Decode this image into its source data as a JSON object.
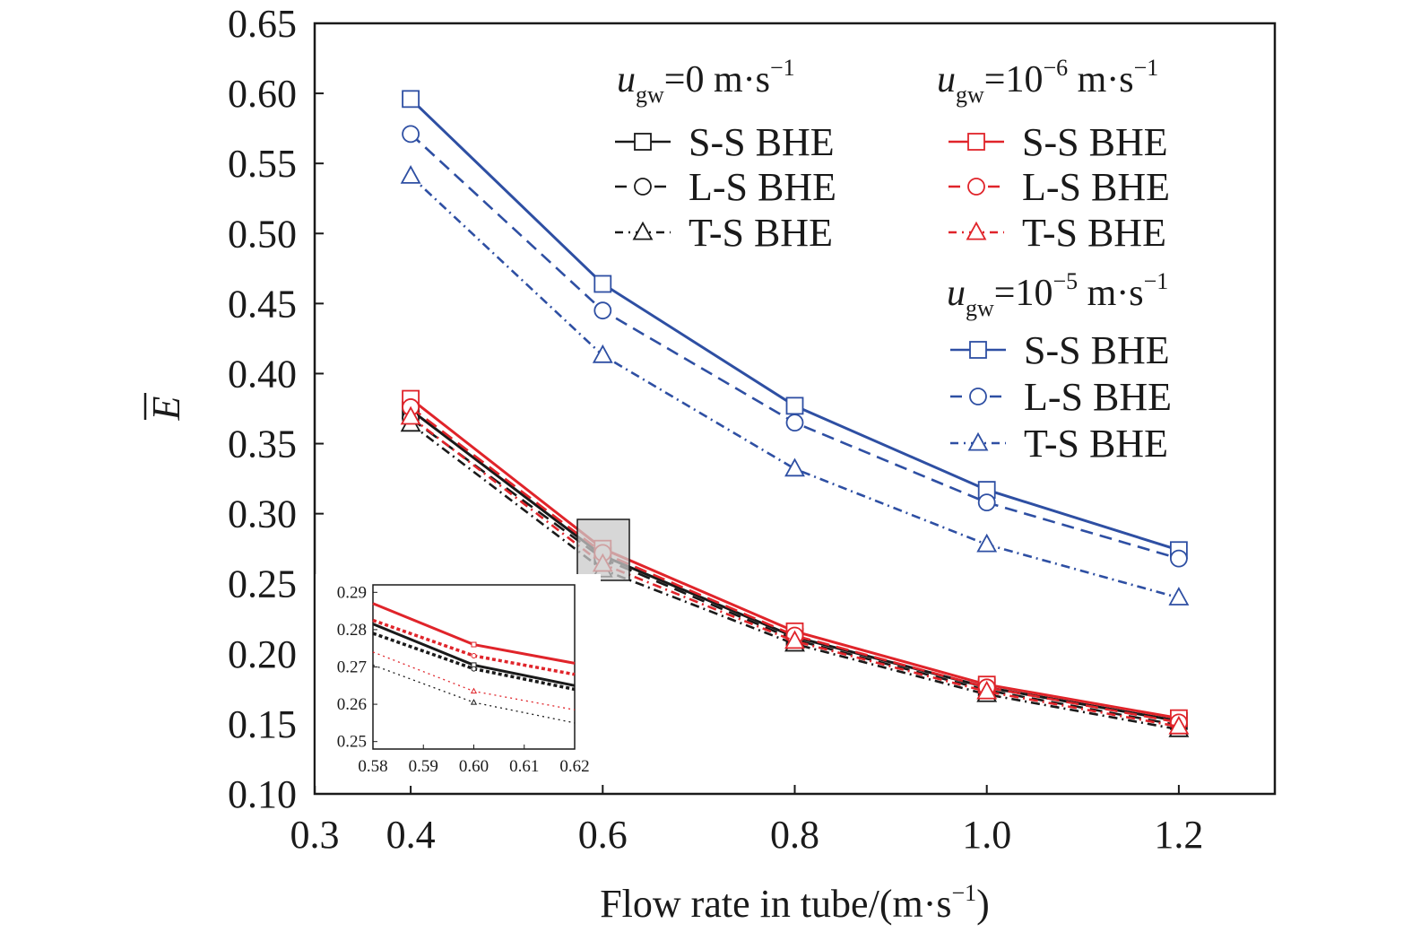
{
  "chart_data": {
    "type": "line",
    "xlabel": "Flow rate in tube/(m·s",
    "xlabel_sup": "−1",
    "xlabel_tail": ")",
    "ylabel": "E",
    "ylabel_bar": true,
    "xlim": [
      0.3,
      1.3
    ],
    "ylim": [
      0.1,
      0.65
    ],
    "x_ticks": [
      "0.3",
      "0.4",
      "0.6",
      "0.8",
      "1.0",
      "1.2"
    ],
    "y_ticks": [
      "0.10",
      "0.15",
      "0.20",
      "0.25",
      "0.30",
      "0.35",
      "0.40",
      "0.45",
      "0.50",
      "0.55",
      "0.60",
      "0.65"
    ],
    "x": [
      0.4,
      0.6,
      0.8,
      1.0,
      1.2
    ],
    "legend_groups": [
      {
        "heading": {
          "u": "u",
          "sub": "gw",
          "eq": "=0 m·s",
          "sup": "−1"
        },
        "color": "#1a1a1a",
        "entries": [
          {
            "label": "S-S BHE",
            "marker": "square",
            "dash": "solid"
          },
          {
            "label": "L-S BHE",
            "marker": "circle",
            "dash": "dashed"
          },
          {
            "label": "T-S BHE",
            "marker": "triangle",
            "dash": "dashdot"
          }
        ]
      },
      {
        "heading": {
          "u": "u",
          "sub": "gw",
          "eq": "=10",
          "eq_sup": "−6",
          "eq2": " m·s",
          "sup": "−1"
        },
        "color": "#e0242a",
        "entries": [
          {
            "label": "S-S BHE",
            "marker": "square",
            "dash": "solid"
          },
          {
            "label": "L-S BHE",
            "marker": "circle",
            "dash": "dashed"
          },
          {
            "label": "T-S BHE",
            "marker": "triangle",
            "dash": "dashdot"
          }
        ]
      },
      {
        "heading": {
          "u": "u",
          "sub": "gw",
          "eq": "=10",
          "eq_sup": "−5",
          "eq2": " m·s",
          "sup": "−1"
        },
        "color": "#2e4fa3",
        "entries": [
          {
            "label": "S-S BHE",
            "marker": "square",
            "dash": "solid"
          },
          {
            "label": "L-S BHE",
            "marker": "circle",
            "dash": "dashed"
          },
          {
            "label": "T-S BHE",
            "marker": "triangle",
            "dash": "dashdot"
          }
        ]
      }
    ],
    "series": [
      {
        "group": 2,
        "entry": 0,
        "values": [
          0.596,
          0.464,
          0.377,
          0.317,
          0.274
        ]
      },
      {
        "group": 2,
        "entry": 1,
        "values": [
          0.571,
          0.445,
          0.365,
          0.308,
          0.268
        ]
      },
      {
        "group": 2,
        "entry": 2,
        "values": [
          0.541,
          0.413,
          0.332,
          0.278,
          0.24
        ]
      },
      {
        "group": 0,
        "entry": 0,
        "values": [
          0.374,
          0.27,
          0.212,
          0.176,
          0.152
        ]
      },
      {
        "group": 0,
        "entry": 1,
        "values": [
          0.368,
          0.268,
          0.21,
          0.174,
          0.149
        ]
      },
      {
        "group": 0,
        "entry": 2,
        "values": [
          0.364,
          0.26,
          0.207,
          0.171,
          0.146
        ]
      },
      {
        "group": 1,
        "entry": 0,
        "values": [
          0.382,
          0.275,
          0.216,
          0.178,
          0.154
        ]
      },
      {
        "group": 1,
        "entry": 1,
        "values": [
          0.376,
          0.272,
          0.213,
          0.176,
          0.151
        ]
      },
      {
        "group": 1,
        "entry": 2,
        "values": [
          0.369,
          0.264,
          0.209,
          0.173,
          0.148
        ]
      }
    ],
    "inset": {
      "xlim": [
        0.58,
        0.62
      ],
      "ylim": [
        0.248,
        0.292
      ],
      "x_ticks": [
        "0.58",
        "0.59",
        "0.60",
        "0.61",
        "0.62"
      ],
      "y_ticks": [
        "0.25",
        "0.26",
        "0.27",
        "0.28",
        "0.29"
      ],
      "x": [
        0.58,
        0.6,
        0.62
      ],
      "series": [
        {
          "group": 1,
          "entry": 0,
          "values": [
            0.287,
            0.276,
            0.271
          ]
        },
        {
          "group": 0,
          "entry": 0,
          "values": [
            0.2815,
            0.2705,
            0.265
          ]
        },
        {
          "group": 1,
          "entry": 1,
          "values": [
            0.2825,
            0.273,
            0.268
          ]
        },
        {
          "group": 0,
          "entry": 1,
          "values": [
            0.279,
            0.2695,
            0.264
          ]
        },
        {
          "group": 1,
          "entry": 2,
          "values": [
            0.274,
            0.2635,
            0.2585
          ]
        },
        {
          "group": 0,
          "entry": 2,
          "values": [
            0.2705,
            0.2605,
            0.255
          ]
        }
      ]
    }
  }
}
